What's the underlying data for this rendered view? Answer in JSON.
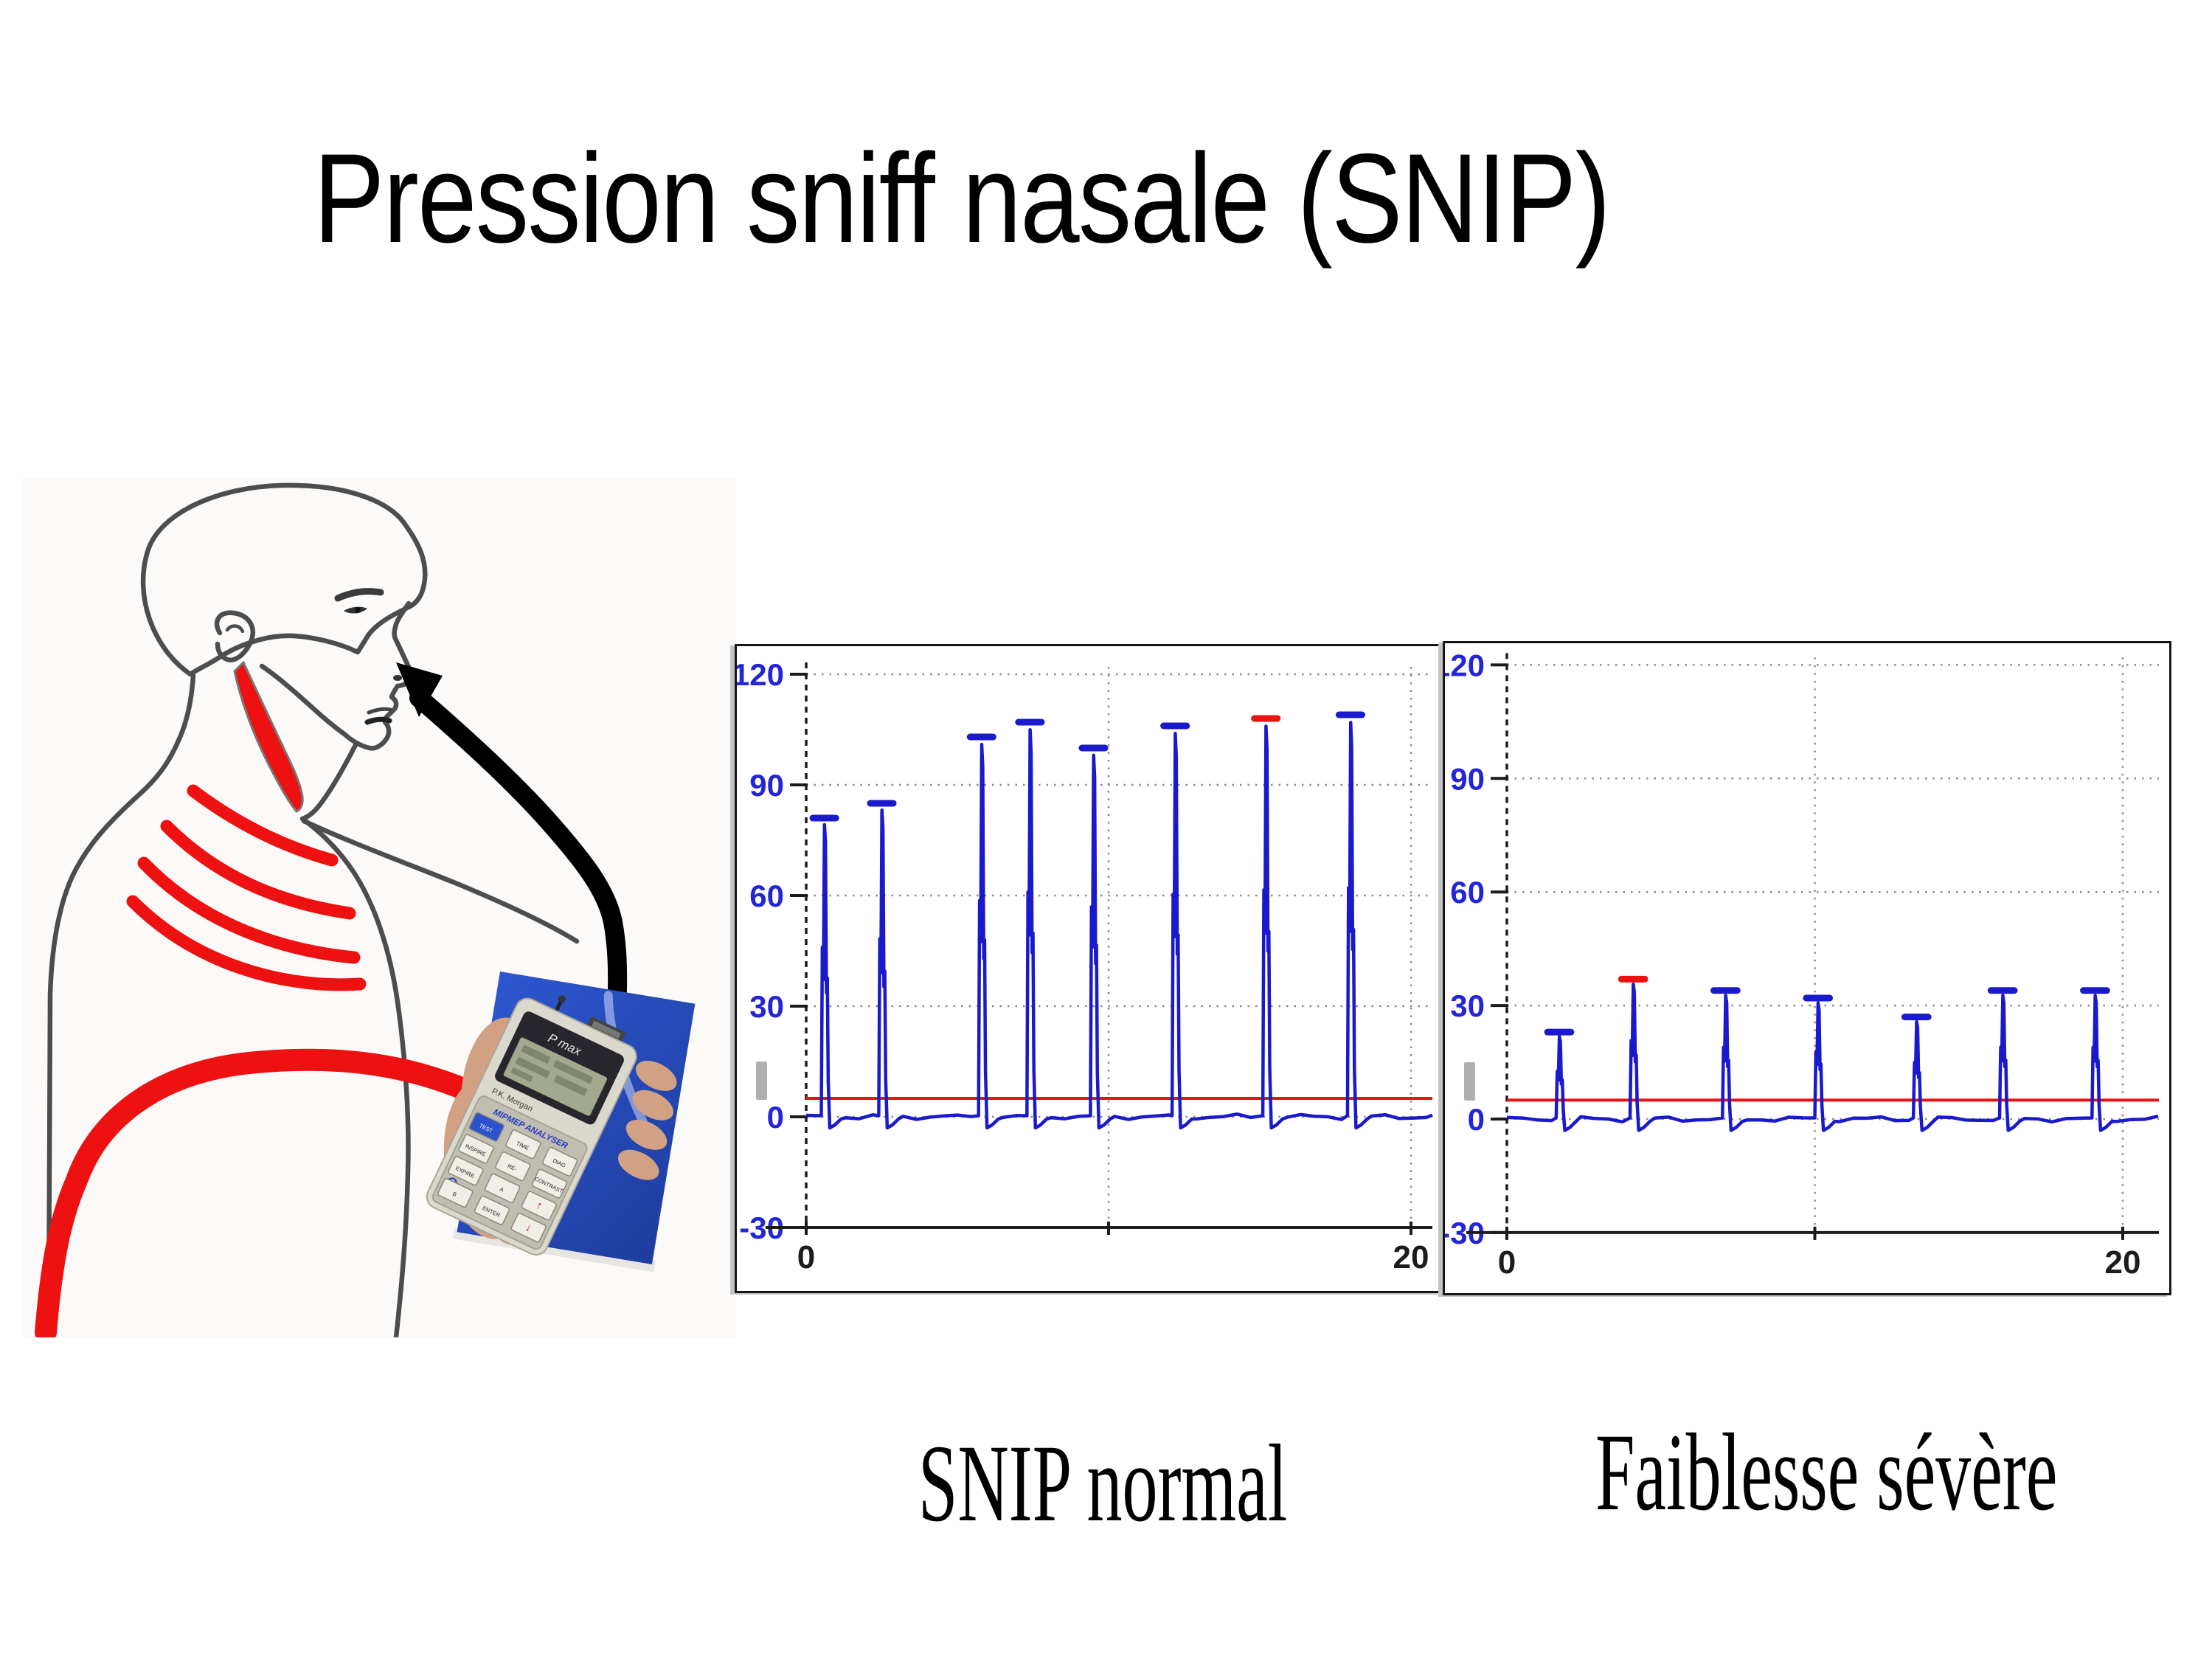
{
  "slide": {
    "title": "Pression sniff nasale (SNIP)"
  },
  "figures": {
    "left_caption": "SNIP normal",
    "right_caption": "Faiblesse sévère"
  },
  "illustration": {
    "device": {
      "top_label": "P max",
      "brand": "P.K. Morgan",
      "panel_label": "MIPMEP ANALYSER",
      "keys": [
        "TEST",
        "TIME",
        "DIAG",
        "INSPIRE",
        "RE-",
        "CONTRAST",
        "EXPIRE",
        "A",
        "↑",
        "B",
        "ENTER",
        "↓"
      ]
    }
  },
  "chart_data": [
    {
      "type": "line",
      "title": "SNIP normal",
      "xlabel": "",
      "ylabel": "",
      "xlim": [
        0,
        21.3
      ],
      "ylim": [
        -30,
        120
      ],
      "x_ticks": [
        0,
        10,
        20
      ],
      "x_tick_labels": [
        "0",
        "",
        "20"
      ],
      "y_ticks": [
        120,
        90,
        60,
        30,
        0,
        -30
      ],
      "grid": "dotted",
      "legend": "none",
      "threshold_line": 5,
      "threshold_color": "#ee1111",
      "trace_color": "#1a1acc",
      "axis_label_color": "#2525d8",
      "baseline": 0,
      "spikes": [
        {
          "x": 1.0,
          "peak": 80,
          "marker": "blue"
        },
        {
          "x": 2.9,
          "peak": 84,
          "marker": "blue"
        },
        {
          "x": 6.2,
          "peak": 102,
          "marker": "blue"
        },
        {
          "x": 7.8,
          "peak": 106,
          "marker": "blue"
        },
        {
          "x": 9.9,
          "peak": 99,
          "marker": "blue"
        },
        {
          "x": 12.6,
          "peak": 105,
          "marker": "blue"
        },
        {
          "x": 15.6,
          "peak": 107,
          "marker": "red"
        },
        {
          "x": 18.4,
          "peak": 108,
          "marker": "blue"
        }
      ]
    },
    {
      "type": "line",
      "title": "Faiblesse sévère",
      "xlabel": "",
      "ylabel": "",
      "xlim": [
        0,
        21.3
      ],
      "ylim": [
        -30,
        120
      ],
      "x_ticks": [
        0,
        10,
        20
      ],
      "x_tick_labels": [
        "0",
        "",
        "20"
      ],
      "y_ticks": [
        120,
        90,
        60,
        30,
        0,
        -30
      ],
      "grid": "dotted",
      "legend": "none",
      "threshold_line": 5,
      "threshold_color": "#ee1111",
      "trace_color": "#1a1acc",
      "axis_label_color": "#2525d8",
      "baseline": 0,
      "spikes": [
        {
          "x": 2.1,
          "peak": 22,
          "marker": "blue"
        },
        {
          "x": 4.5,
          "peak": 36,
          "marker": "red"
        },
        {
          "x": 7.5,
          "peak": 33,
          "marker": "blue"
        },
        {
          "x": 10.5,
          "peak": 31,
          "marker": "blue"
        },
        {
          "x": 13.7,
          "peak": 26,
          "marker": "blue"
        },
        {
          "x": 16.5,
          "peak": 33,
          "marker": "blue"
        },
        {
          "x": 19.5,
          "peak": 33,
          "marker": "blue"
        }
      ]
    }
  ]
}
